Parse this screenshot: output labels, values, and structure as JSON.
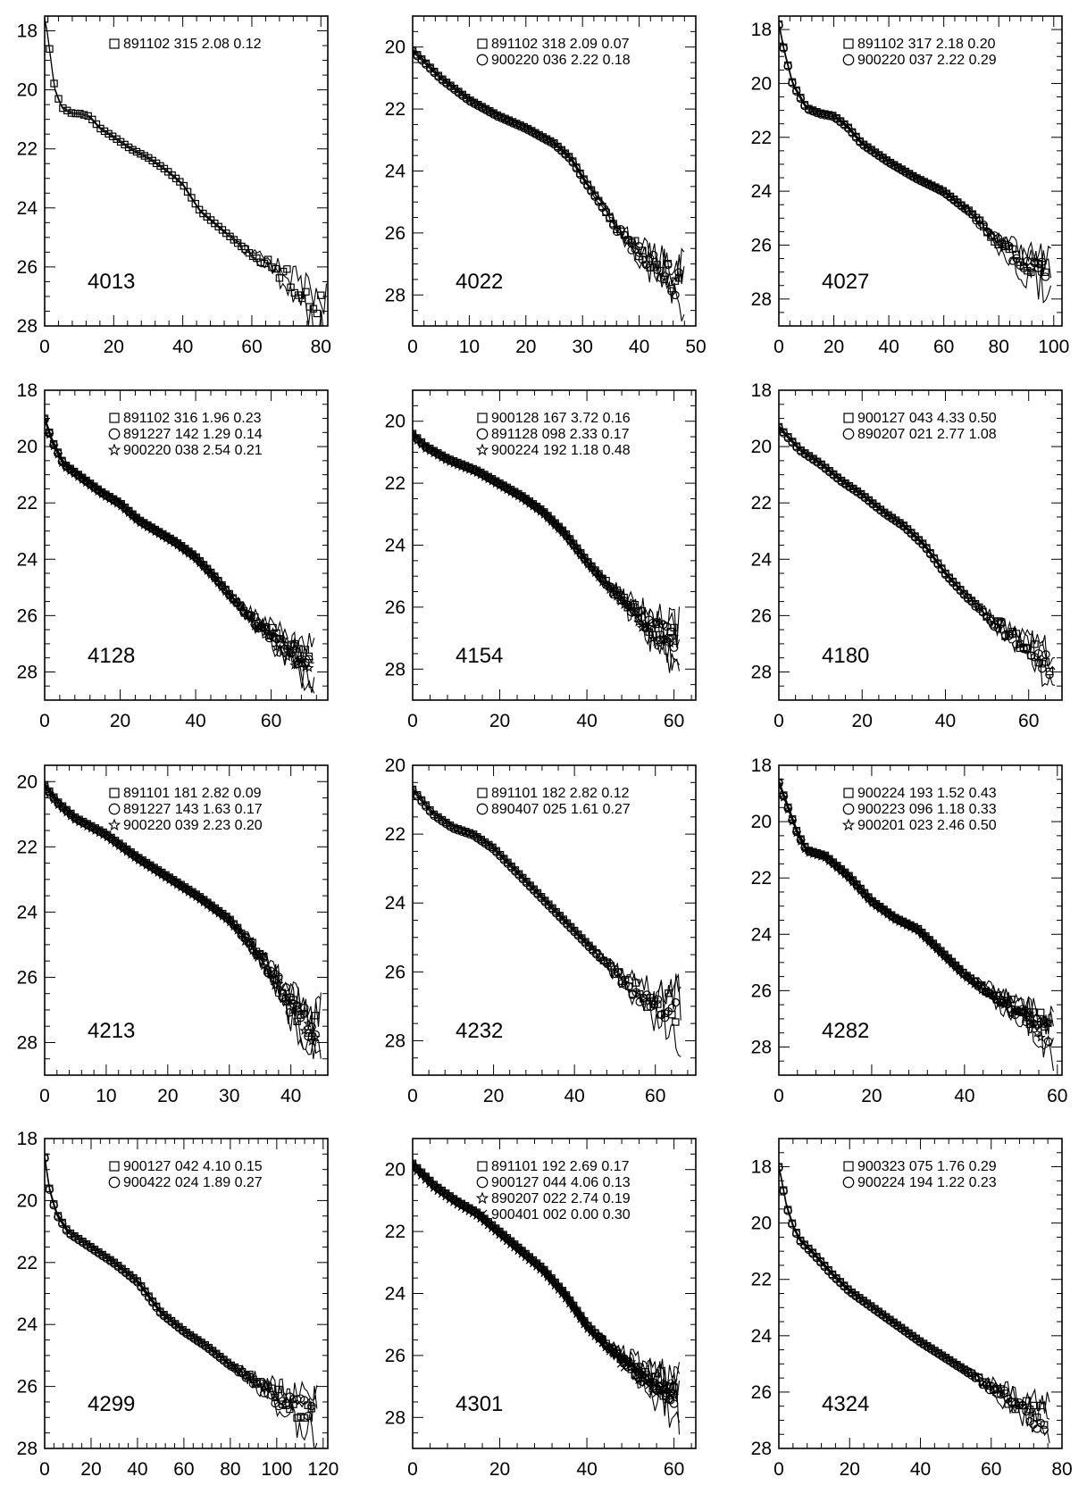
{
  "chart_data": [
    {
      "type": "scatter",
      "galaxy_id": "4013",
      "xlim": [
        0,
        82
      ],
      "ylim": [
        28,
        17.5
      ],
      "xticks": [
        0,
        20,
        40,
        60,
        80
      ],
      "yticks": [
        18,
        20,
        22,
        24,
        26,
        28
      ],
      "xtick_labels": [
        "0",
        "20",
        "40",
        "60",
        "80"
      ],
      "ytick_labels": [
        "18",
        "20",
        "22",
        "24",
        "26",
        "28"
      ],
      "legend": [
        {
          "marker": "square",
          "text": "891102  315  2.08  0.12"
        }
      ],
      "profile": [
        [
          0,
          17.6
        ],
        [
          1,
          18.2
        ],
        [
          2,
          19.2
        ],
        [
          3,
          20.0
        ],
        [
          5,
          20.6
        ],
        [
          8,
          20.8
        ],
        [
          10,
          20.8
        ],
        [
          13,
          20.9
        ],
        [
          16,
          21.3
        ],
        [
          20,
          21.6
        ],
        [
          25,
          22.0
        ],
        [
          30,
          22.3
        ],
        [
          35,
          22.7
        ],
        [
          40,
          23.2
        ],
        [
          45,
          24.1
        ],
        [
          50,
          24.6
        ],
        [
          55,
          25.1
        ],
        [
          60,
          25.6
        ],
        [
          65,
          25.9
        ],
        [
          70,
          26.3
        ],
        [
          75,
          26.9
        ],
        [
          80,
          27.4
        ]
      ]
    },
    {
      "type": "scatter",
      "galaxy_id": "4022",
      "xlim": [
        0,
        50
      ],
      "ylim": [
        29,
        19
      ],
      "xticks": [
        0,
        10,
        20,
        30,
        40,
        50
      ],
      "yticks": [
        20,
        22,
        24,
        26,
        28
      ],
      "xtick_labels": [
        "0",
        "10",
        "20",
        "30",
        "40",
        "50"
      ],
      "ytick_labels": [
        "20",
        "22",
        "24",
        "26",
        "28"
      ],
      "legend": [
        {
          "marker": "square",
          "text": "891102  318  2.09  0.07"
        },
        {
          "marker": "circle",
          "text": "900220  036  2.22  0.18"
        }
      ],
      "profile": [
        [
          0,
          20.1
        ],
        [
          5,
          21.0
        ],
        [
          10,
          21.7
        ],
        [
          15,
          22.2
        ],
        [
          20,
          22.6
        ],
        [
          25,
          23.1
        ],
        [
          28,
          23.6
        ],
        [
          30,
          24.2
        ],
        [
          33,
          25.0
        ],
        [
          36,
          25.8
        ],
        [
          40,
          26.6
        ],
        [
          44,
          27.2
        ],
        [
          47,
          27.6
        ]
      ]
    },
    {
      "type": "scatter",
      "galaxy_id": "4027",
      "xlim": [
        0,
        103
      ],
      "ylim": [
        29,
        17.5
      ],
      "xticks": [
        0,
        20,
        40,
        60,
        80,
        100
      ],
      "yticks": [
        18,
        20,
        22,
        24,
        26,
        28
      ],
      "xtick_labels": [
        "0",
        "20",
        "40",
        "60",
        "80",
        "100"
      ],
      "ytick_labels": [
        "18",
        "20",
        "22",
        "24",
        "26",
        "28"
      ],
      "legend": [
        {
          "marker": "square",
          "text": "891102  317  2.18  0.20"
        },
        {
          "marker": "circle",
          "text": "900220  037  2.22  0.29"
        }
      ],
      "profile": [
        [
          0,
          17.8
        ],
        [
          2,
          18.8
        ],
        [
          5,
          20.0
        ],
        [
          10,
          20.9
        ],
        [
          15,
          21.1
        ],
        [
          20,
          21.2
        ],
        [
          25,
          21.6
        ],
        [
          30,
          22.2
        ],
        [
          40,
          22.9
        ],
        [
          50,
          23.5
        ],
        [
          60,
          24.0
        ],
        [
          70,
          24.8
        ],
        [
          80,
          25.9
        ],
        [
          90,
          26.7
        ],
        [
          97,
          27.0
        ]
      ]
    },
    {
      "type": "scatter",
      "galaxy_id": "4128",
      "xlim": [
        0,
        75
      ],
      "ylim": [
        29,
        18
      ],
      "xticks": [
        0,
        20,
        40,
        60
      ],
      "yticks": [
        18,
        20,
        22,
        24,
        26,
        28
      ],
      "xtick_labels": [
        "0",
        "20",
        "40",
        "60"
      ],
      "ytick_labels": [
        "18",
        "20",
        "22",
        "24",
        "26",
        "28"
      ],
      "legend": [
        {
          "marker": "square",
          "text": "891102  316  1.96  0.23"
        },
        {
          "marker": "circle",
          "text": "891227  142  1.29  0.14"
        },
        {
          "marker": "star",
          "text": "900220  038  2.54  0.21"
        }
      ],
      "profile": [
        [
          0,
          19.0
        ],
        [
          2,
          19.8
        ],
        [
          5,
          20.6
        ],
        [
          10,
          21.1
        ],
        [
          15,
          21.6
        ],
        [
          20,
          22.0
        ],
        [
          25,
          22.6
        ],
        [
          30,
          23.0
        ],
        [
          35,
          23.4
        ],
        [
          40,
          23.9
        ],
        [
          45,
          24.6
        ],
        [
          50,
          25.4
        ],
        [
          55,
          26.1
        ],
        [
          60,
          26.6
        ],
        [
          65,
          27.2
        ],
        [
          70,
          27.7
        ]
      ]
    },
    {
      "type": "scatter",
      "galaxy_id": "4154",
      "xlim": [
        0,
        65
      ],
      "ylim": [
        29,
        19
      ],
      "xticks": [
        0,
        20,
        40,
        60
      ],
      "yticks": [
        20,
        22,
        24,
        26,
        28
      ],
      "xtick_labels": [
        "0",
        "20",
        "40",
        "60"
      ],
      "ytick_labels": [
        "20",
        "22",
        "24",
        "26",
        "28"
      ],
      "legend": [
        {
          "marker": "square",
          "text": "900128  167  3.72  0.16"
        },
        {
          "marker": "circle",
          "text": "891128  098  2.33  0.17"
        },
        {
          "marker": "star",
          "text": "900224  192  1.18  0.48"
        }
      ],
      "profile": [
        [
          0,
          20.4
        ],
        [
          3,
          20.8
        ],
        [
          8,
          21.2
        ],
        [
          15,
          21.6
        ],
        [
          20,
          22.0
        ],
        [
          25,
          22.4
        ],
        [
          30,
          22.9
        ],
        [
          35,
          23.6
        ],
        [
          40,
          24.5
        ],
        [
          45,
          25.3
        ],
        [
          50,
          26.0
        ],
        [
          55,
          26.6
        ],
        [
          60,
          27.1
        ]
      ]
    },
    {
      "type": "scatter",
      "galaxy_id": "4180",
      "xlim": [
        0,
        68
      ],
      "ylim": [
        29,
        18
      ],
      "xticks": [
        0,
        20,
        40,
        60
      ],
      "yticks": [
        18,
        20,
        22,
        24,
        26,
        28
      ],
      "xtick_labels": [
        "0",
        "20",
        "40",
        "60"
      ],
      "ytick_labels": [
        "18",
        "20",
        "22",
        "24",
        "26",
        "28"
      ],
      "legend": [
        {
          "marker": "square",
          "text": "900127  043  4.33  0.50"
        },
        {
          "marker": "circle",
          "text": "890207  021  2.77  1.08"
        }
      ],
      "profile": [
        [
          0,
          19.3
        ],
        [
          5,
          20.1
        ],
        [
          10,
          20.6
        ],
        [
          15,
          21.2
        ],
        [
          20,
          21.7
        ],
        [
          25,
          22.3
        ],
        [
          30,
          22.8
        ],
        [
          35,
          23.5
        ],
        [
          40,
          24.5
        ],
        [
          45,
          25.3
        ],
        [
          50,
          26.0
        ],
        [
          55,
          26.6
        ],
        [
          60,
          27.1
        ],
        [
          65,
          27.7
        ]
      ]
    },
    {
      "type": "scatter",
      "galaxy_id": "4213",
      "xlim": [
        0,
        46
      ],
      "ylim": [
        29,
        19.5
      ],
      "xticks": [
        0,
        10,
        20,
        30,
        40
      ],
      "yticks": [
        20,
        22,
        24,
        26,
        28
      ],
      "xtick_labels": [
        "0",
        "10",
        "20",
        "30",
        "40"
      ],
      "ytick_labels": [
        "20",
        "22",
        "24",
        "26",
        "28"
      ],
      "legend": [
        {
          "marker": "square",
          "text": "891101  181  2.82  0.09"
        },
        {
          "marker": "circle",
          "text": "891227  143  1.63  0.17"
        },
        {
          "marker": "star",
          "text": "900220  039  2.23  0.20"
        }
      ],
      "profile": [
        [
          0,
          20.1
        ],
        [
          2,
          20.6
        ],
        [
          5,
          21.1
        ],
        [
          10,
          21.6
        ],
        [
          15,
          22.3
        ],
        [
          20,
          22.9
        ],
        [
          25,
          23.5
        ],
        [
          30,
          24.2
        ],
        [
          35,
          25.3
        ],
        [
          38,
          26.2
        ],
        [
          40,
          26.8
        ],
        [
          42,
          27.2
        ],
        [
          44,
          27.6
        ]
      ]
    },
    {
      "type": "scatter",
      "galaxy_id": "4232",
      "xlim": [
        0,
        70
      ],
      "ylim": [
        29,
        20
      ],
      "xticks": [
        0,
        20,
        40,
        60
      ],
      "yticks": [
        20,
        22,
        24,
        26,
        28
      ],
      "xtick_labels": [
        "0",
        "20",
        "40",
        "60"
      ],
      "ytick_labels": [
        "20",
        "22",
        "24",
        "26",
        "28"
      ],
      "legend": [
        {
          "marker": "square",
          "text": "891101  182  2.82  0.12"
        },
        {
          "marker": "circle",
          "text": "890407  025  1.61  0.27"
        }
      ],
      "profile": [
        [
          0,
          20.7
        ],
        [
          5,
          21.4
        ],
        [
          10,
          21.8
        ],
        [
          15,
          22.0
        ],
        [
          20,
          22.4
        ],
        [
          25,
          23.0
        ],
        [
          30,
          23.6
        ],
        [
          35,
          24.2
        ],
        [
          40,
          24.8
        ],
        [
          45,
          25.4
        ],
        [
          50,
          26.0
        ],
        [
          55,
          26.5
        ],
        [
          60,
          26.9
        ],
        [
          65,
          27.1
        ]
      ]
    },
    {
      "type": "scatter",
      "galaxy_id": "4282",
      "xlim": [
        0,
        61
      ],
      "ylim": [
        29,
        18
      ],
      "xticks": [
        0,
        20,
        40,
        60
      ],
      "yticks": [
        18,
        20,
        22,
        24,
        26,
        28
      ],
      "xtick_labels": [
        "0",
        "20",
        "40",
        "60"
      ],
      "ytick_labels": [
        "18",
        "20",
        "22",
        "24",
        "26",
        "28"
      ],
      "legend": [
        {
          "marker": "square",
          "text": "900224  193  1.52  0.43"
        },
        {
          "marker": "circle",
          "text": "900223  096  1.18  0.33"
        },
        {
          "marker": "star",
          "text": "900201  023  2.46  0.50"
        }
      ],
      "profile": [
        [
          0,
          18.6
        ],
        [
          2,
          19.5
        ],
        [
          4,
          20.4
        ],
        [
          6,
          21.0
        ],
        [
          8,
          21.1
        ],
        [
          10,
          21.2
        ],
        [
          15,
          21.9
        ],
        [
          20,
          22.8
        ],
        [
          25,
          23.4
        ],
        [
          30,
          23.8
        ],
        [
          35,
          24.6
        ],
        [
          40,
          25.4
        ],
        [
          45,
          26.0
        ],
        [
          50,
          26.5
        ],
        [
          55,
          27.0
        ],
        [
          58,
          27.4
        ]
      ]
    },
    {
      "type": "scatter",
      "galaxy_id": "4299",
      "xlim": [
        0,
        122
      ],
      "ylim": [
        28,
        18
      ],
      "xticks": [
        0,
        20,
        40,
        60,
        80,
        100,
        120
      ],
      "yticks": [
        18,
        20,
        22,
        24,
        26,
        28
      ],
      "xtick_labels": [
        "0",
        "20",
        "40",
        "60",
        "80",
        "100",
        "120"
      ],
      "ytick_labels": [
        "18",
        "20",
        "22",
        "24",
        "26",
        "28"
      ],
      "legend": [
        {
          "marker": "square",
          "text": "900127  042  4.10  0.15"
        },
        {
          "marker": "circle",
          "text": "900422  024  1.89  0.27"
        }
      ],
      "profile": [
        [
          0,
          18.6
        ],
        [
          2,
          19.6
        ],
        [
          5,
          20.4
        ],
        [
          10,
          21.0
        ],
        [
          20,
          21.5
        ],
        [
          30,
          22.0
        ],
        [
          40,
          22.6
        ],
        [
          50,
          23.6
        ],
        [
          60,
          24.2
        ],
        [
          70,
          24.7
        ],
        [
          80,
          25.3
        ],
        [
          90,
          25.8
        ],
        [
          100,
          26.3
        ],
        [
          110,
          26.7
        ],
        [
          115,
          26.8
        ]
      ]
    },
    {
      "type": "scatter",
      "galaxy_id": "4301",
      "xlim": [
        0,
        65
      ],
      "ylim": [
        29,
        19
      ],
      "xticks": [
        0,
        20,
        40,
        60
      ],
      "yticks": [
        20,
        22,
        24,
        26,
        28
      ],
      "xtick_labels": [
        "0",
        "20",
        "40",
        "60"
      ],
      "ytick_labels": [
        "20",
        "22",
        "24",
        "26",
        "28"
      ],
      "legend": [
        {
          "marker": "square",
          "text": "891101  192  2.69  0.17"
        },
        {
          "marker": "circle",
          "text": "900127  044  4.06  0.13"
        },
        {
          "marker": "star",
          "text": "890207  022  2.74  0.19"
        },
        {
          "marker": "cross",
          "text": "900401  002  0.00  0.30"
        }
      ],
      "profile": [
        [
          0,
          19.8
        ],
        [
          5,
          20.5
        ],
        [
          10,
          21.0
        ],
        [
          15,
          21.4
        ],
        [
          20,
          22.0
        ],
        [
          25,
          22.6
        ],
        [
          30,
          23.2
        ],
        [
          35,
          24.0
        ],
        [
          40,
          25.0
        ],
        [
          45,
          25.7
        ],
        [
          50,
          26.3
        ],
        [
          55,
          26.8
        ],
        [
          60,
          27.2
        ]
      ]
    },
    {
      "type": "scatter",
      "galaxy_id": "4324",
      "xlim": [
        0,
        80
      ],
      "ylim": [
        28,
        17
      ],
      "xticks": [
        0,
        20,
        40,
        60,
        80
      ],
      "yticks": [
        18,
        20,
        22,
        24,
        26,
        28
      ],
      "xtick_labels": [
        "0",
        "20",
        "40",
        "60",
        "80"
      ],
      "ytick_labels": [
        "18",
        "20",
        "22",
        "24",
        "26",
        "28"
      ],
      "legend": [
        {
          "marker": "square",
          "text": "900323  075  1.76  0.29"
        },
        {
          "marker": "circle",
          "text": "900224  194  1.22  0.23"
        }
      ],
      "profile": [
        [
          0,
          18.0
        ],
        [
          1,
          18.6
        ],
        [
          2,
          19.3
        ],
        [
          4,
          20.1
        ],
        [
          6,
          20.6
        ],
        [
          10,
          21.1
        ],
        [
          15,
          21.8
        ],
        [
          20,
          22.4
        ],
        [
          30,
          23.3
        ],
        [
          40,
          24.2
        ],
        [
          50,
          25.0
        ],
        [
          60,
          25.8
        ],
        [
          70,
          26.6
        ],
        [
          75,
          27.0
        ]
      ]
    }
  ]
}
